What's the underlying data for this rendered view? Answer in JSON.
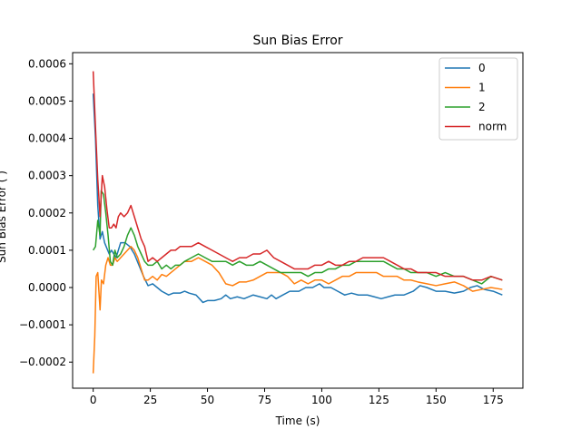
{
  "chart_data": {
    "type": "line",
    "title": "Sun Bias Error",
    "xlabel": "Time (s)",
    "ylabel": "Sun Bias Error ( )",
    "xlim": [
      -9,
      188
    ],
    "ylim": [
      -0.00027,
      0.00063
    ],
    "xticks": [
      0,
      25,
      50,
      75,
      100,
      125,
      150,
      175
    ],
    "xtick_labels": [
      "0",
      "25",
      "50",
      "75",
      "100",
      "125",
      "150",
      "175"
    ],
    "yticks": [
      -0.0002,
      -0.0001,
      0.0,
      0.0001,
      0.0002,
      0.0003,
      0.0004,
      0.0005,
      0.0006
    ],
    "ytick_labels": [
      "−0.0002",
      "−0.0001",
      "0.0000",
      "0.0001",
      "0.0002",
      "0.0003",
      "0.0004",
      "0.0005",
      "0.0006"
    ],
    "grid": false,
    "legend_position": "top-right",
    "colors": [
      "#1f77b4",
      "#ff7f0e",
      "#2ca02c",
      "#d62728"
    ],
    "series": [
      {
        "name": "0",
        "points": [
          [
            0,
            0.00052
          ],
          [
            1,
            0.0004
          ],
          [
            2,
            0.00022
          ],
          [
            3,
            0.00013
          ],
          [
            4,
            0.00015
          ],
          [
            5,
            0.00012
          ],
          [
            7,
            9e-05
          ],
          [
            8,
            0.0001
          ],
          [
            10,
            8e-05
          ],
          [
            12,
            0.00012
          ],
          [
            14,
            0.00012
          ],
          [
            16,
            0.00011
          ],
          [
            18,
            9e-05
          ],
          [
            20,
            6e-05
          ],
          [
            22,
            3e-05
          ],
          [
            24,
            5e-06
          ],
          [
            26,
            1e-05
          ],
          [
            28,
            0.0
          ],
          [
            30,
            -1e-05
          ],
          [
            33,
            -2e-05
          ],
          [
            35,
            -1.5e-05
          ],
          [
            38,
            -1.5e-05
          ],
          [
            40,
            -1e-05
          ],
          [
            42,
            -1.5e-05
          ],
          [
            45,
            -2e-05
          ],
          [
            48,
            -4e-05
          ],
          [
            50,
            -3.5e-05
          ],
          [
            53,
            -3.5e-05
          ],
          [
            56,
            -3e-05
          ],
          [
            58,
            -2e-05
          ],
          [
            60,
            -3e-05
          ],
          [
            63,
            -2.5e-05
          ],
          [
            66,
            -3e-05
          ],
          [
            70,
            -2e-05
          ],
          [
            73,
            -2.5e-05
          ],
          [
            76,
            -3e-05
          ],
          [
            78,
            -2e-05
          ],
          [
            80,
            -3e-05
          ],
          [
            83,
            -2e-05
          ],
          [
            86,
            -1e-05
          ],
          [
            90,
            -1e-05
          ],
          [
            93,
            0.0
          ],
          [
            96,
            0.0
          ],
          [
            99,
            1e-05
          ],
          [
            101,
            0.0
          ],
          [
            104,
            0.0
          ],
          [
            107,
            -1e-05
          ],
          [
            110,
            -2e-05
          ],
          [
            113,
            -1.5e-05
          ],
          [
            116,
            -2e-05
          ],
          [
            120,
            -2e-05
          ],
          [
            123,
            -2.5e-05
          ],
          [
            126,
            -3e-05
          ],
          [
            129,
            -2.5e-05
          ],
          [
            132,
            -2e-05
          ],
          [
            136,
            -2e-05
          ],
          [
            140,
            -1e-05
          ],
          [
            143,
            5e-06
          ],
          [
            146,
            0.0
          ],
          [
            150,
            -1e-05
          ],
          [
            154,
            -1e-05
          ],
          [
            158,
            -1.5e-05
          ],
          [
            162,
            -1e-05
          ],
          [
            165,
            0.0
          ],
          [
            168,
            5e-06
          ],
          [
            171,
            -5e-06
          ],
          [
            175,
            -1e-05
          ],
          [
            179,
            -2e-05
          ]
        ]
      },
      {
        "name": "1",
        "points": [
          [
            0,
            -0.00023
          ],
          [
            0.7,
            -0.00013
          ],
          [
            1.3,
            3e-05
          ],
          [
            2,
            4e-05
          ],
          [
            3,
            -6e-05
          ],
          [
            3.6,
            2e-05
          ],
          [
            4.5,
            1e-05
          ],
          [
            5.5,
            6e-05
          ],
          [
            6.5,
            8e-05
          ],
          [
            7.5,
            6e-05
          ],
          [
            8.5,
            6e-05
          ],
          [
            9.5,
            8e-05
          ],
          [
            10.5,
            7e-05
          ],
          [
            12,
            8e-05
          ],
          [
            13.5,
            9e-05
          ],
          [
            15,
            0.0001
          ],
          [
            16.5,
            0.00011
          ],
          [
            18,
            0.0001
          ],
          [
            19.5,
            8e-05
          ],
          [
            21,
            5e-05
          ],
          [
            22.5,
            2e-05
          ],
          [
            24,
            2e-05
          ],
          [
            26,
            3e-05
          ],
          [
            28,
            2e-05
          ],
          [
            30,
            3.5e-05
          ],
          [
            32,
            3e-05
          ],
          [
            34,
            4e-05
          ],
          [
            36,
            5e-05
          ],
          [
            38,
            6e-05
          ],
          [
            40,
            7e-05
          ],
          [
            43,
            7e-05
          ],
          [
            46,
            8e-05
          ],
          [
            49,
            7e-05
          ],
          [
            52,
            6e-05
          ],
          [
            55,
            4e-05
          ],
          [
            58,
            1e-05
          ],
          [
            61,
            5e-06
          ],
          [
            64,
            1.5e-05
          ],
          [
            67,
            1.5e-05
          ],
          [
            70,
            2e-05
          ],
          [
            73,
            3e-05
          ],
          [
            76,
            4e-05
          ],
          [
            79,
            4e-05
          ],
          [
            82,
            4e-05
          ],
          [
            85,
            3e-05
          ],
          [
            88,
            1e-05
          ],
          [
            91,
            2e-05
          ],
          [
            94,
            1e-05
          ],
          [
            97,
            2e-05
          ],
          [
            100,
            2e-05
          ],
          [
            103,
            1e-05
          ],
          [
            106,
            2e-05
          ],
          [
            109,
            3e-05
          ],
          [
            112,
            3e-05
          ],
          [
            115,
            4e-05
          ],
          [
            118,
            4e-05
          ],
          [
            121,
            4e-05
          ],
          [
            124,
            4e-05
          ],
          [
            127,
            3e-05
          ],
          [
            130,
            3e-05
          ],
          [
            133,
            3e-05
          ],
          [
            136,
            2e-05
          ],
          [
            139,
            2e-05
          ],
          [
            142,
            1.5e-05
          ],
          [
            146,
            1e-05
          ],
          [
            150,
            5e-06
          ],
          [
            154,
            1e-05
          ],
          [
            158,
            1.5e-05
          ],
          [
            162,
            5e-06
          ],
          [
            166,
            -1e-05
          ],
          [
            170,
            -5e-06
          ],
          [
            174,
            0.0
          ],
          [
            179,
            -5e-06
          ]
        ]
      },
      {
        "name": "2",
        "points": [
          [
            0,
            0.0001
          ],
          [
            1,
            0.00011
          ],
          [
            2,
            0.00018
          ],
          [
            3,
            0.00014
          ],
          [
            3.5,
            0.00026
          ],
          [
            4.5,
            0.00025
          ],
          [
            5.5,
            0.0002
          ],
          [
            6.5,
            0.00014
          ],
          [
            7.5,
            7e-05
          ],
          [
            8.5,
            6e-05
          ],
          [
            9.5,
            0.0001
          ],
          [
            10.5,
            8e-05
          ],
          [
            12,
            9e-05
          ],
          [
            13.5,
            0.00011
          ],
          [
            15,
            0.00014
          ],
          [
            16.5,
            0.00016
          ],
          [
            18,
            0.00014
          ],
          [
            19.5,
            0.00011
          ],
          [
            21,
            9e-05
          ],
          [
            22.5,
            7e-05
          ],
          [
            24,
            6e-05
          ],
          [
            26,
            6e-05
          ],
          [
            28,
            7e-05
          ],
          [
            30,
            5e-05
          ],
          [
            32,
            6e-05
          ],
          [
            34,
            5e-05
          ],
          [
            36,
            6e-05
          ],
          [
            38,
            6e-05
          ],
          [
            40,
            7e-05
          ],
          [
            43,
            8e-05
          ],
          [
            46,
            9e-05
          ],
          [
            49,
            8e-05
          ],
          [
            52,
            7e-05
          ],
          [
            55,
            7e-05
          ],
          [
            58,
            7e-05
          ],
          [
            61,
            6e-05
          ],
          [
            64,
            7e-05
          ],
          [
            67,
            6e-05
          ],
          [
            70,
            6e-05
          ],
          [
            73,
            7e-05
          ],
          [
            76,
            6e-05
          ],
          [
            79,
            5e-05
          ],
          [
            82,
            4e-05
          ],
          [
            85,
            4e-05
          ],
          [
            88,
            4e-05
          ],
          [
            91,
            4e-05
          ],
          [
            94,
            3e-05
          ],
          [
            97,
            4e-05
          ],
          [
            100,
            4e-05
          ],
          [
            103,
            5e-05
          ],
          [
            106,
            5e-05
          ],
          [
            109,
            6e-05
          ],
          [
            112,
            6e-05
          ],
          [
            115,
            7e-05
          ],
          [
            118,
            7e-05
          ],
          [
            121,
            7e-05
          ],
          [
            124,
            7e-05
          ],
          [
            127,
            7e-05
          ],
          [
            130,
            6e-05
          ],
          [
            133,
            5e-05
          ],
          [
            136,
            5e-05
          ],
          [
            139,
            4e-05
          ],
          [
            142,
            4e-05
          ],
          [
            146,
            4e-05
          ],
          [
            150,
            3e-05
          ],
          [
            154,
            4e-05
          ],
          [
            158,
            3e-05
          ],
          [
            162,
            3e-05
          ],
          [
            166,
            2e-05
          ],
          [
            170,
            1e-05
          ],
          [
            174,
            3e-05
          ],
          [
            179,
            2e-05
          ]
        ]
      },
      {
        "name": "norm",
        "points": [
          [
            0,
            0.00058
          ],
          [
            1,
            0.00043
          ],
          [
            2,
            0.00029
          ],
          [
            3,
            0.00019
          ],
          [
            4,
            0.0003
          ],
          [
            5,
            0.00027
          ],
          [
            6,
            0.00021
          ],
          [
            7,
            0.00016
          ],
          [
            8,
            0.00016
          ],
          [
            9,
            0.00017
          ],
          [
            10,
            0.00016
          ],
          [
            11,
            0.00019
          ],
          [
            12,
            0.0002
          ],
          [
            13.5,
            0.00019
          ],
          [
            15,
            0.0002
          ],
          [
            16.5,
            0.00022
          ],
          [
            18,
            0.00019
          ],
          [
            19.5,
            0.00016
          ],
          [
            21,
            0.00013
          ],
          [
            22.5,
            0.00011
          ],
          [
            24,
            7e-05
          ],
          [
            26,
            8e-05
          ],
          [
            28,
            7e-05
          ],
          [
            30,
            8e-05
          ],
          [
            32,
            9e-05
          ],
          [
            34,
            0.0001
          ],
          [
            36,
            0.0001
          ],
          [
            38,
            0.00011
          ],
          [
            40,
            0.00011
          ],
          [
            43,
            0.00011
          ],
          [
            46,
            0.00012
          ],
          [
            49,
            0.00011
          ],
          [
            52,
            0.0001
          ],
          [
            55,
            9e-05
          ],
          [
            58,
            8e-05
          ],
          [
            61,
            7e-05
          ],
          [
            64,
            8e-05
          ],
          [
            67,
            8e-05
          ],
          [
            70,
            9e-05
          ],
          [
            73,
            9e-05
          ],
          [
            76,
            0.0001
          ],
          [
            79,
            8e-05
          ],
          [
            82,
            7e-05
          ],
          [
            85,
            6e-05
          ],
          [
            88,
            5e-05
          ],
          [
            91,
            5e-05
          ],
          [
            94,
            5e-05
          ],
          [
            97,
            6e-05
          ],
          [
            100,
            6e-05
          ],
          [
            103,
            7e-05
          ],
          [
            106,
            6e-05
          ],
          [
            109,
            6e-05
          ],
          [
            112,
            7e-05
          ],
          [
            115,
            7e-05
          ],
          [
            118,
            8e-05
          ],
          [
            121,
            8e-05
          ],
          [
            124,
            8e-05
          ],
          [
            127,
            8e-05
          ],
          [
            130,
            7e-05
          ],
          [
            133,
            6e-05
          ],
          [
            136,
            5e-05
          ],
          [
            139,
            5e-05
          ],
          [
            142,
            4e-05
          ],
          [
            146,
            4e-05
          ],
          [
            150,
            4e-05
          ],
          [
            154,
            3e-05
          ],
          [
            158,
            3e-05
          ],
          [
            162,
            3e-05
          ],
          [
            166,
            2e-05
          ],
          [
            170,
            2e-05
          ],
          [
            174,
            3e-05
          ],
          [
            179,
            2e-05
          ]
        ]
      }
    ]
  }
}
